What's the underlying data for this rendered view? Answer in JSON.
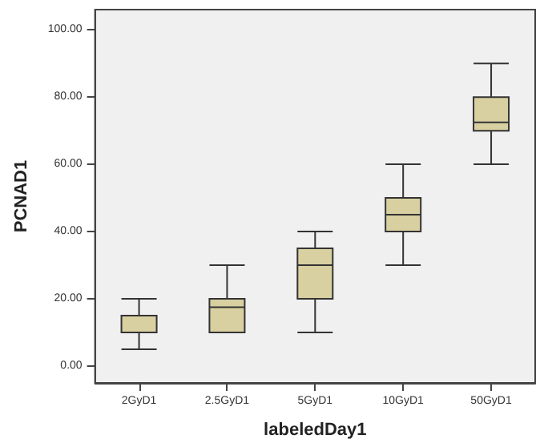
{
  "chart_data": {
    "type": "box",
    "xlabel": "labeledDay1",
    "ylabel": "PCNAD1",
    "categories": [
      "2GyD1",
      "2.5GyD1",
      "5GyD1",
      "10GyD1",
      "50GyD1"
    ],
    "color": "#d8d0a0",
    "boxes": [
      {
        "low": 5,
        "q1": 10,
        "median": 15,
        "q3": 15,
        "high": 20
      },
      {
        "low": 10,
        "q1": 10,
        "median": 17.5,
        "q3": 20,
        "high": 30
      },
      {
        "low": 10,
        "q1": 20,
        "median": 30,
        "q3": 35,
        "high": 40
      },
      {
        "low": 30,
        "q1": 40,
        "median": 45,
        "q3": 50,
        "high": 60
      },
      {
        "low": 60,
        "q1": 70,
        "median": 72.5,
        "q3": 80,
        "high": 90
      }
    ],
    "ylim": [
      -5,
      106
    ],
    "yticks": [
      {
        "value": 0,
        "label": "0.00"
      },
      {
        "value": 20,
        "label": "20.00"
      },
      {
        "value": 40,
        "label": "40.00"
      },
      {
        "value": 60,
        "label": "60.00"
      },
      {
        "value": 80,
        "label": "80.00"
      },
      {
        "value": 100,
        "label": "100.00"
      }
    ],
    "grid": false
  }
}
